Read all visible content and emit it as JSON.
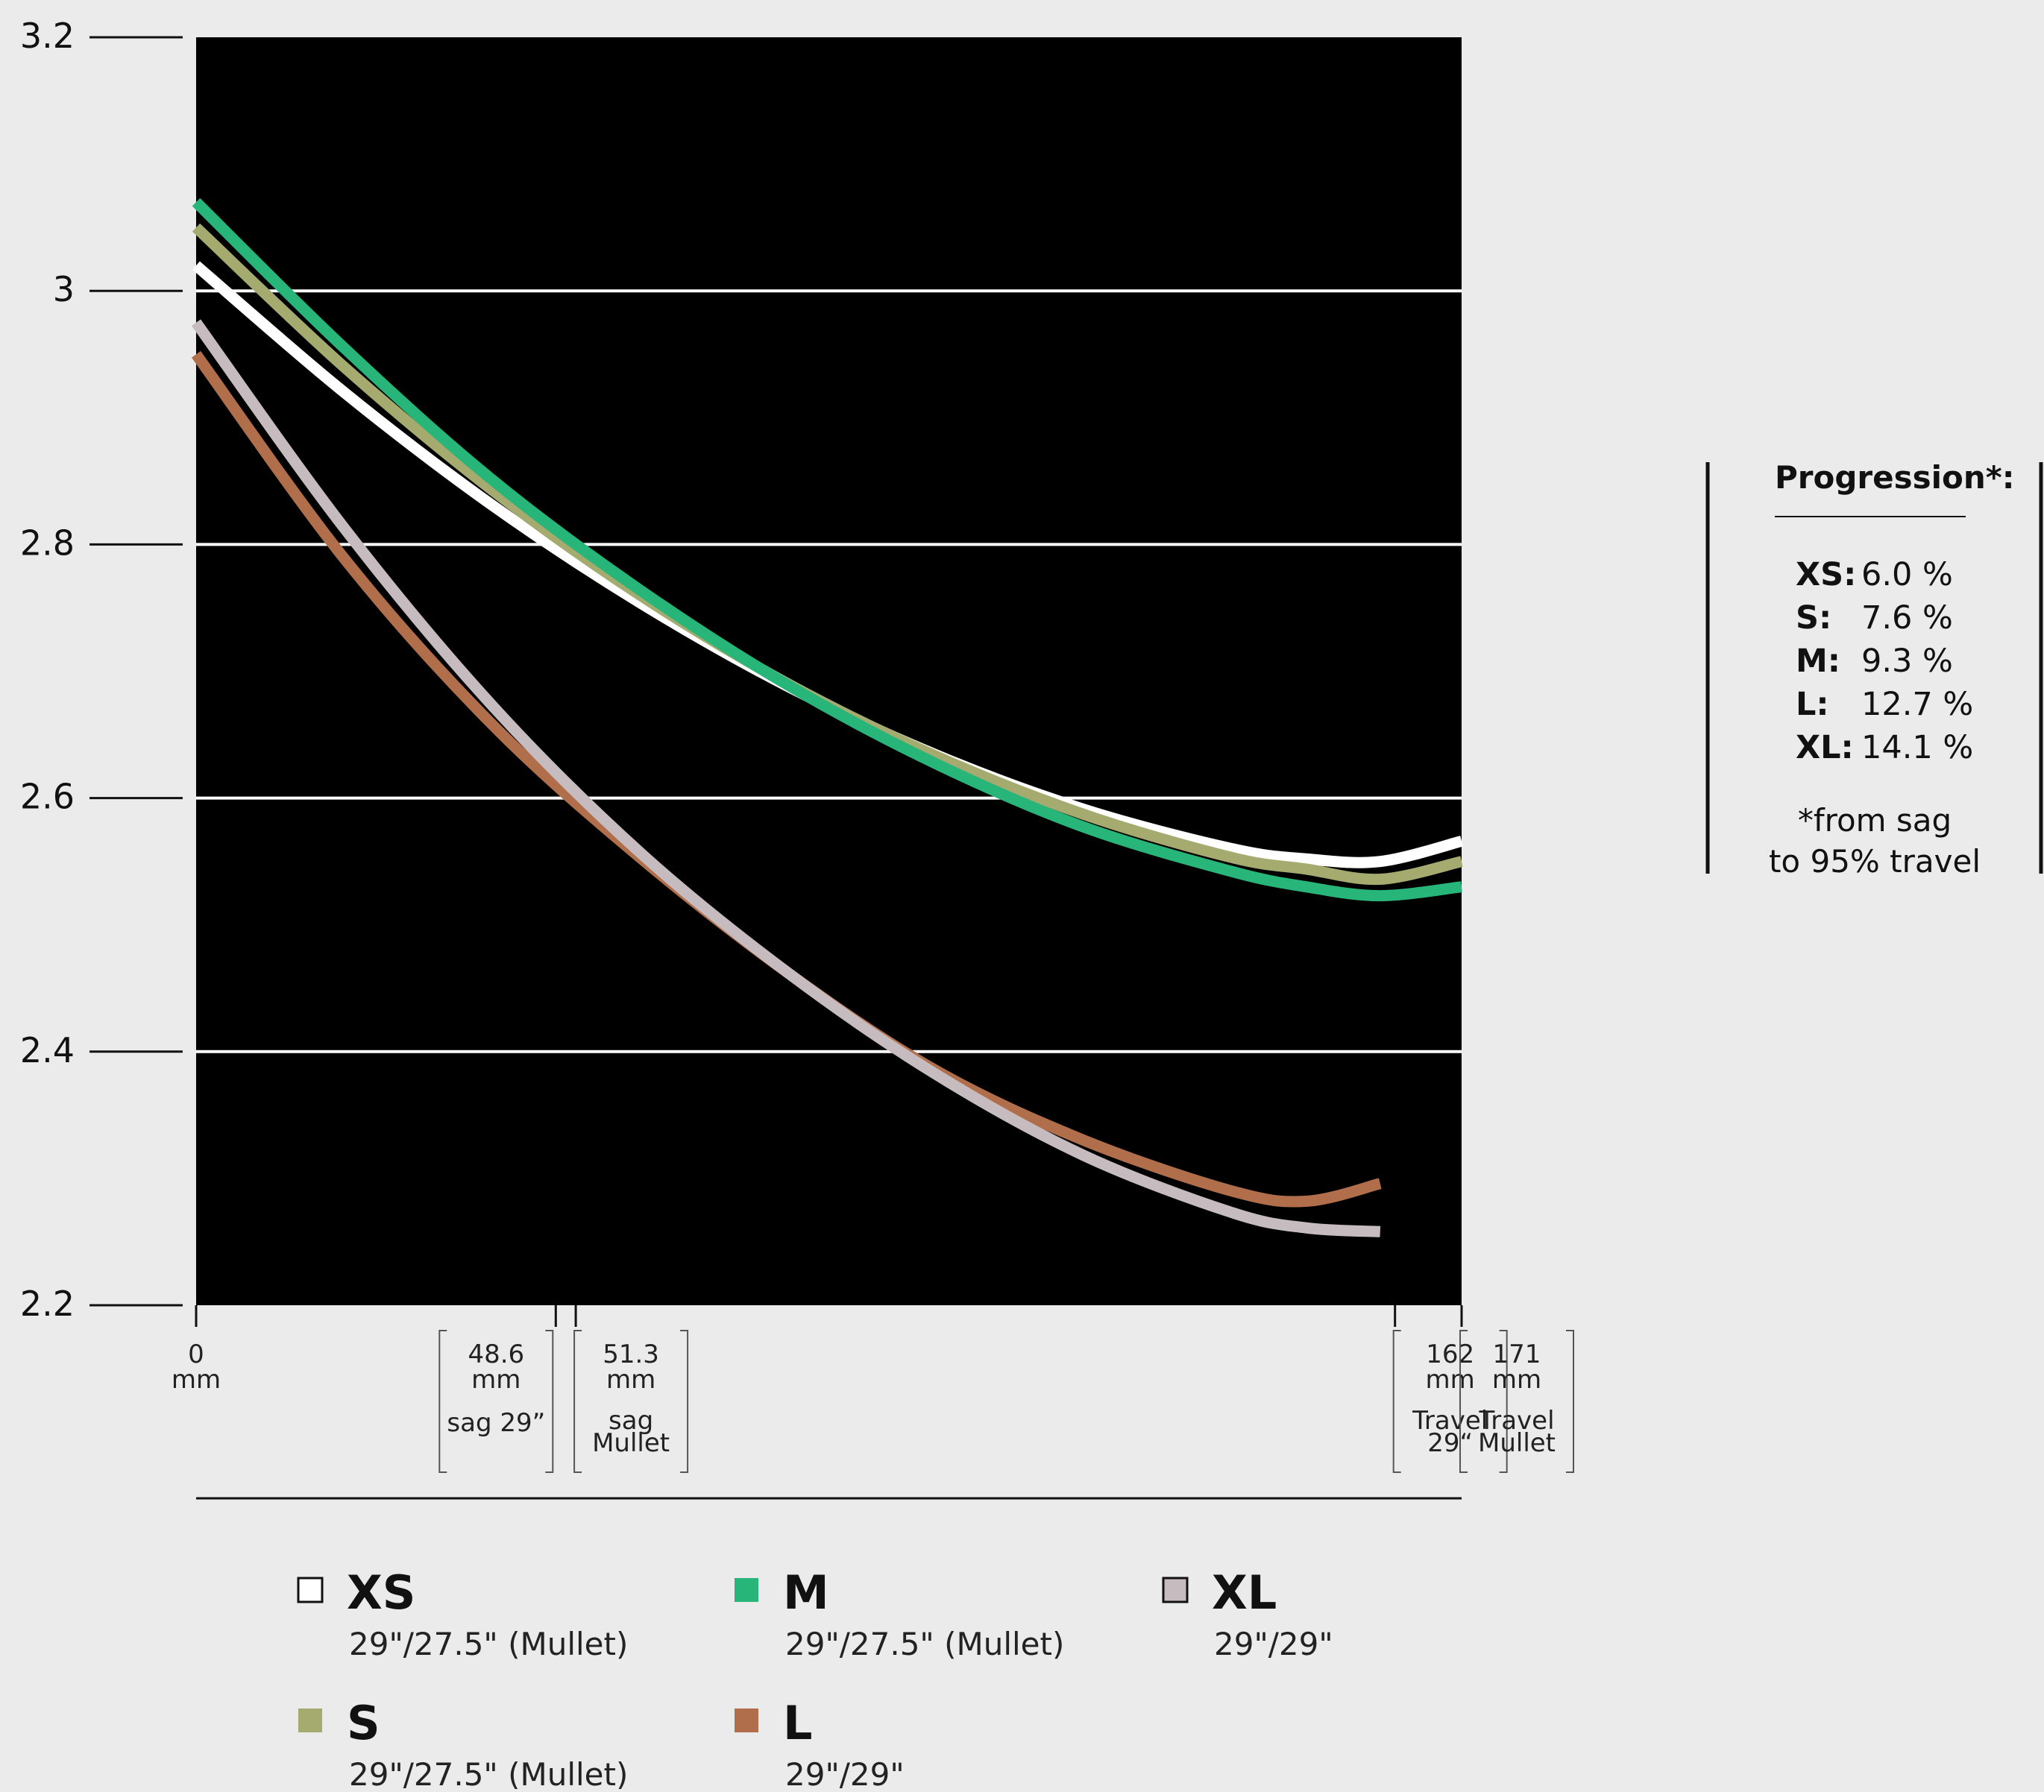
{
  "chart_data": {
    "type": "line",
    "ylim": [
      2.2,
      3.2
    ],
    "y_ticks": [
      "3.2",
      "3",
      "2.8",
      "2.6",
      "2.4",
      "2.2"
    ],
    "xlim": [
      0,
      171
    ],
    "grid": true,
    "x_markers": [
      {
        "value": 0,
        "label": "0",
        "unit": "mm",
        "note": ""
      },
      {
        "value": 48.6,
        "label": "48.6",
        "unit": "mm",
        "note": "sag 29”"
      },
      {
        "value": 51.3,
        "label": "51.3",
        "unit": "mm",
        "note": "sag\nMullet"
      },
      {
        "value": 162,
        "label": "162",
        "unit": "mm",
        "note": "Travel\n29“"
      },
      {
        "value": 171,
        "label": "171",
        "unit": "mm",
        "note": "Travel\nMullet"
      }
    ],
    "series": [
      {
        "name": "XS",
        "subtitle": "29\"/27.5\" (Mullet)",
        "color": "#ffffff",
        "x": [
          0,
          20,
          40,
          60,
          80,
          100,
          120,
          140,
          150,
          160,
          171
        ],
        "y": [
          3.02,
          2.92,
          2.831,
          2.754,
          2.688,
          2.634,
          2.591,
          2.56,
          2.552,
          2.55,
          2.566
        ]
      },
      {
        "name": "S",
        "subtitle": "29\"/27.5\" (Mullet)",
        "color": "#a5ab6e",
        "x": [
          0,
          20,
          40,
          60,
          80,
          100,
          120,
          140,
          150,
          160,
          171
        ],
        "y": [
          3.05,
          2.94,
          2.843,
          2.76,
          2.69,
          2.633,
          2.587,
          2.553,
          2.544,
          2.536,
          2.55
        ]
      },
      {
        "name": "M",
        "subtitle": "29\"/27.5\" (Mullet)",
        "color": "#27b57a",
        "x": [
          0,
          20,
          40,
          60,
          80,
          100,
          120,
          140,
          150,
          160,
          171
        ],
        "y": [
          3.07,
          2.955,
          2.851,
          2.764,
          2.689,
          2.627,
          2.577,
          2.542,
          2.53,
          2.523,
          2.53
        ]
      },
      {
        "name": "L",
        "subtitle": "29\"/29\"",
        "color": "#b06f4a",
        "x": [
          0,
          20,
          40,
          60,
          80,
          100,
          120,
          140,
          150,
          160
        ],
        "y": [
          2.95,
          2.789,
          2.658,
          2.553,
          2.462,
          2.385,
          2.33,
          2.29,
          2.282,
          2.296
        ]
      },
      {
        "name": "XL",
        "subtitle": "29\"/29\"",
        "color": "#c6bcc0",
        "x": [
          0,
          20,
          40,
          60,
          80,
          100,
          120,
          140,
          150,
          160
        ],
        "y": [
          2.975,
          2.813,
          2.673,
          2.557,
          2.462,
          2.382,
          2.318,
          2.273,
          2.261,
          2.258
        ]
      }
    ]
  },
  "legend": [
    {
      "name": "XS",
      "subtitle": "29\"/27.5\" (Mullet)",
      "color": "#ffffff"
    },
    {
      "name": "M",
      "subtitle": "29\"/27.5\" (Mullet)",
      "color": "#27b57a"
    },
    {
      "name": "XL",
      "subtitle": "29\"/29\"",
      "color": "#c6bcc0"
    },
    {
      "name": "S",
      "subtitle": "29\"/27.5\" (Mullet)",
      "color": "#a5ab6e"
    },
    {
      "name": "L",
      "subtitle": "29\"/29\"",
      "color": "#b06f4a"
    }
  ],
  "progression": {
    "title": "Progression*:",
    "rows": [
      {
        "key": "XS:",
        "value": "6.0 %"
      },
      {
        "key": "S:",
        "value": "7.6 %"
      },
      {
        "key": "M:",
        "value": "9.3 %"
      },
      {
        "key": "L:",
        "value": "12.7 %"
      },
      {
        "key": "XL:",
        "value": "14.1 %"
      }
    ],
    "note_line1": "*from sag",
    "note_line2": "to 95% travel"
  },
  "colors": {
    "plot_background": "#000000",
    "page_background": "#ebebeb",
    "gridline": "#ffffff"
  }
}
